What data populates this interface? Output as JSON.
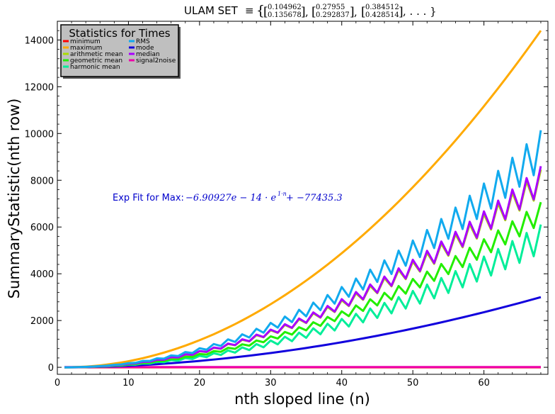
{
  "chart_data": {
    "type": "line",
    "title": {
      "prefix": "ULAM SET",
      "equiv": "≡",
      "vectors": [
        [
          "0.104962",
          "0.135678"
        ],
        [
          "0.27955",
          "0.292837"
        ],
        [
          "0.384512",
          "0.428514"
        ]
      ],
      "ellipsis": ", . . . }"
    },
    "xlabel": "nth sloped line (n)",
    "ylabel": "SummaryStatistic(nth row)",
    "xlim": [
      0,
      69
    ],
    "ylim": [
      -300,
      14800
    ],
    "xticks": [
      0,
      10,
      20,
      30,
      40,
      50,
      60
    ],
    "yticks": [
      0,
      2000,
      4000,
      6000,
      8000,
      10000,
      12000,
      14000
    ],
    "grid": false,
    "legend": {
      "title": "Statistics for Times",
      "placement": "top-left",
      "columns": 2
    },
    "annotation": {
      "prefix": "Exp Fit for Max: ",
      "formula_start": "−6.90927e − 14 · e",
      "formula_exp": "1·n",
      "formula_end": " + −77435.3"
    },
    "series": [
      {
        "name": "minimum",
        "color": "#ff0000",
        "x_start": 1,
        "x_end": 68,
        "model": "flat",
        "base": 0,
        "jitter": 0
      },
      {
        "name": "maximum",
        "color": "#ffaa00",
        "x_start": 1,
        "x_end": 68,
        "model": "power",
        "base": 14400,
        "exponent": 2.0,
        "jitter": 0
      },
      {
        "name": "arithmetic mean",
        "color": "#aadd00",
        "x_start": 1,
        "x_end": 68,
        "model": "power",
        "base": 7900,
        "exponent": 2.0,
        "jitter": 0.07
      },
      {
        "name": "geometric mean",
        "color": "#22ee00",
        "x_start": 1,
        "x_end": 68,
        "model": "power",
        "base": 6600,
        "exponent": 2.0,
        "jitter": 0.07
      },
      {
        "name": "harmonic mean",
        "color": "#00ee99",
        "x_start": 1,
        "x_end": 68,
        "model": "power",
        "base": 5500,
        "exponent": 2.0,
        "jitter": 0.11
      },
      {
        "name": "RMS",
        "color": "#11aaee",
        "x_start": 1,
        "x_end": 68,
        "model": "power",
        "base": 9300,
        "exponent": 2.0,
        "jitter": 0.09
      },
      {
        "name": "mode",
        "color": "#1100dd",
        "x_start": 1,
        "x_end": 68,
        "model": "power",
        "base": 3000,
        "exponent": 1.9,
        "jitter": 0
      },
      {
        "name": "median",
        "color": "#aa00ff",
        "x_start": 1,
        "x_end": 68,
        "model": "power",
        "base": 8000,
        "exponent": 2.0,
        "jitter": 0.075
      },
      {
        "name": "signal2noise",
        "color": "#ee00aa",
        "x_start": 1,
        "x_end": 68,
        "model": "flat",
        "base": 10,
        "jitter": 0
      }
    ]
  }
}
